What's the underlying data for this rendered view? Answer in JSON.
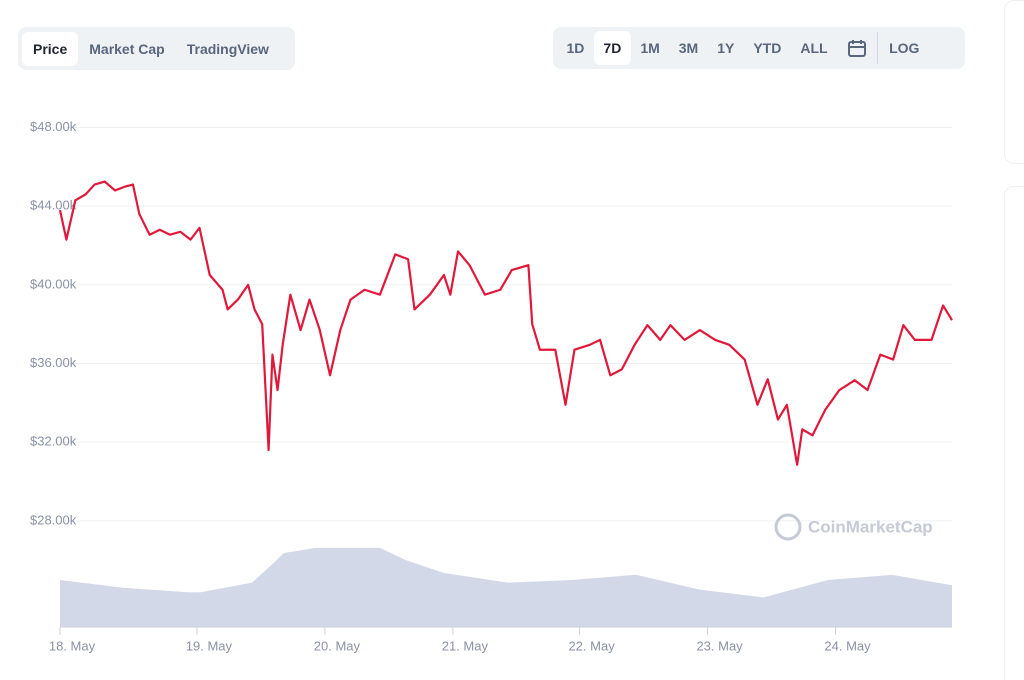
{
  "tabs": [
    "Price",
    "Market Cap",
    "TradingView"
  ],
  "selected_tab": 0,
  "ranges": [
    "1D",
    "7D",
    "1M",
    "3M",
    "1Y",
    "YTD",
    "ALL"
  ],
  "selected_range": 1,
  "log_button": "LOG",
  "watermark": "CoinMarketCap",
  "chart_data": {
    "type": "line",
    "color": "#e0193b",
    "grid": true,
    "x": [
      0,
      0.05,
      0.12,
      0.2,
      0.27,
      0.35,
      0.43,
      0.51,
      0.57,
      0.62,
      0.7,
      0.78,
      0.86,
      0.94,
      1.02,
      1.09,
      1.17,
      1.27,
      1.31,
      1.39,
      1.47,
      1.52,
      1.58,
      1.63,
      1.66,
      1.7,
      1.74,
      1.8,
      1.88,
      1.95,
      2.03,
      2.11,
      2.19,
      2.27,
      2.38,
      2.5,
      2.62,
      2.72,
      2.77,
      2.89,
      3.0,
      3.05,
      3.11,
      3.2,
      3.32,
      3.44,
      3.53,
      3.66,
      3.69,
      3.75,
      3.87,
      3.95,
      4.02,
      4.14,
      4.22,
      4.3,
      4.39,
      4.49,
      4.59,
      4.69,
      4.77,
      4.88,
      5.0,
      5.12,
      5.23,
      5.35,
      5.45,
      5.53,
      5.61,
      5.68,
      5.76,
      5.8,
      5.88,
      5.98,
      6.09,
      6.21,
      6.31,
      6.41,
      6.51,
      6.59,
      6.68,
      6.81,
      6.9,
      6.97
    ],
    "values": [
      43800,
      42300,
      44300,
      44600,
      45100,
      45250,
      44800,
      45000,
      45100,
      43600,
      42550,
      42800,
      42550,
      42700,
      42300,
      42900,
      40500,
      39750,
      38750,
      39250,
      40000,
      38750,
      38000,
      31600,
      36450,
      34650,
      36950,
      39500,
      37700,
      39250,
      37700,
      35400,
      37700,
      39250,
      39750,
      39500,
      41550,
      41300,
      38750,
      39500,
      40500,
      39500,
      41700,
      41000,
      39500,
      39750,
      40750,
      41000,
      38000,
      36700,
      36700,
      33900,
      36700,
      36950,
      37200,
      35400,
      35700,
      36950,
      37950,
      37200,
      37950,
      37200,
      37700,
      37200,
      36950,
      36200,
      33900,
      35200,
      33150,
      33900,
      30850,
      32650,
      32350,
      33650,
      34650,
      35150,
      34650,
      36450,
      36200,
      37950,
      37200,
      37200,
      38950,
      38200
    ],
    "xlim": [
      0,
      6.97
    ],
    "xticks": [
      {
        "value": 0,
        "label": "18. May"
      },
      {
        "value": 1.07,
        "label": "19. May"
      },
      {
        "value": 2.07,
        "label": "20. May"
      },
      {
        "value": 3.07,
        "label": "21. May"
      },
      {
        "value": 4.06,
        "label": "22. May"
      },
      {
        "value": 5.06,
        "label": "23. May"
      },
      {
        "value": 6.06,
        "label": "24. May"
      }
    ],
    "ylim": [
      22600,
      49400
    ],
    "yticks": [
      {
        "value": 28000,
        "label": "$28.00k"
      },
      {
        "value": 32000,
        "label": "$32.00k"
      },
      {
        "value": 36000,
        "label": "$36.00k"
      },
      {
        "value": 40000,
        "label": "$40.00k"
      },
      {
        "value": 44000,
        "label": "$44.00k"
      },
      {
        "value": 48000,
        "label": "$48.00k"
      }
    ],
    "volume": {
      "color": "#d3d8e8",
      "x": [
        0,
        0.5,
        1,
        1.1,
        1.5,
        1.65,
        1.75,
        2.0,
        2.5,
        2.7,
        3,
        3.5,
        4,
        4.5,
        5,
        5.5,
        6,
        6.5,
        6.97
      ],
      "values": [
        54,
        45,
        40,
        40,
        51,
        71,
        85,
        91,
        91,
        77,
        62,
        51,
        54,
        60,
        43,
        34,
        54,
        60,
        48
      ],
      "ylim": [
        0,
        100
      ]
    }
  }
}
